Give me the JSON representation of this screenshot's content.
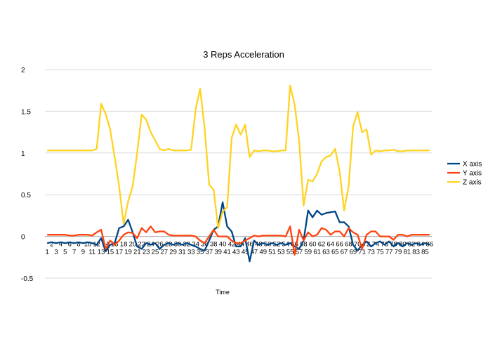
{
  "chart_data": {
    "type": "line",
    "title": "3 Reps Acceleration",
    "xlabel": "Time",
    "ylabel": "",
    "ylim": [
      -0.5,
      2
    ],
    "yticks": [
      "2",
      "1.5",
      "1",
      "0.5",
      "0",
      "-0.5"
    ],
    "grid": true,
    "legend_position": "right",
    "x": [
      1,
      2,
      3,
      4,
      5,
      6,
      7,
      8,
      9,
      10,
      11,
      12,
      13,
      14,
      15,
      16,
      17,
      18,
      19,
      20,
      21,
      22,
      23,
      24,
      25,
      26,
      27,
      28,
      29,
      30,
      31,
      32,
      33,
      34,
      35,
      36,
      37,
      38,
      39,
      40,
      41,
      42,
      43,
      44,
      45,
      46,
      47,
      48,
      49,
      50,
      51,
      52,
      53,
      54,
      55,
      56,
      57,
      58,
      59,
      60,
      61,
      62,
      63,
      64,
      65,
      66,
      67,
      68,
      69,
      70,
      71,
      72,
      73,
      74,
      75,
      76,
      77,
      78,
      79,
      80,
      81,
      82,
      83,
      84,
      85,
      86
    ],
    "series": [
      {
        "name": "X axis",
        "color": "#004586",
        "values": [
          -0.08,
          -0.07,
          -0.08,
          -0.07,
          -0.08,
          -0.07,
          -0.08,
          -0.07,
          -0.08,
          -0.07,
          -0.08,
          -0.1,
          -0.02,
          -0.18,
          -0.1,
          -0.08,
          0.1,
          0.12,
          0.2,
          0.05,
          -0.12,
          -0.15,
          -0.08,
          -0.1,
          -0.08,
          -0.15,
          -0.1,
          -0.08,
          -0.1,
          -0.08,
          -0.1,
          -0.08,
          -0.1,
          -0.12,
          -0.15,
          -0.17,
          -0.05,
          0.08,
          0.12,
          0.41,
          0.12,
          0.06,
          -0.12,
          -0.12,
          -0.02,
          -0.3,
          -0.05,
          -0.1,
          -0.08,
          -0.1,
          -0.08,
          -0.1,
          -0.08,
          -0.1,
          -0.08,
          -0.12,
          -0.15,
          -0.05,
          0.31,
          0.23,
          0.31,
          0.26,
          0.28,
          0.29,
          0.3,
          0.17,
          0.17,
          0.12,
          -0.1,
          -0.17,
          -0.1,
          -0.06,
          -0.12,
          -0.08,
          -0.06,
          -0.1,
          -0.06,
          -0.12,
          -0.08,
          -0.12,
          -0.08,
          -0.1,
          -0.08,
          -0.1,
          -0.08,
          -0.1
        ]
      },
      {
        "name": "Y axis",
        "color": "#ff420e",
        "values": [
          0.02,
          0.02,
          0.02,
          0.02,
          0.02,
          0.01,
          0.01,
          0.02,
          0.02,
          0.02,
          0.01,
          0.05,
          0.08,
          -0.15,
          -0.05,
          -0.1,
          -0.05,
          0.02,
          0.05,
          0.04,
          -0.02,
          0.1,
          0.05,
          0.12,
          0.05,
          0.06,
          0.06,
          0.02,
          0.01,
          0.01,
          0.01,
          0.01,
          0.01,
          0.0,
          -0.05,
          -0.08,
          0.0,
          0.08,
          0.0,
          0.0,
          0.0,
          -0.05,
          -0.08,
          -0.08,
          -0.05,
          -0.02,
          0.01,
          0.0,
          0.01,
          0.01,
          0.01,
          0.01,
          0.01,
          0.0,
          0.12,
          -0.22,
          0.08,
          -0.05,
          0.05,
          0.0,
          0.02,
          0.1,
          0.08,
          0.02,
          0.06,
          0.06,
          0.0,
          0.1,
          0.05,
          0.02,
          -0.15,
          0.02,
          0.06,
          0.06,
          0.0,
          0.0,
          0.0,
          -0.04,
          0.02,
          0.02,
          0.0,
          0.02,
          0.02,
          0.02,
          0.02,
          0.02
        ]
      },
      {
        "name": "Z axis",
        "color": "#ffd320",
        "values": [
          1.03,
          1.03,
          1.03,
          1.03,
          1.03,
          1.03,
          1.03,
          1.03,
          1.03,
          1.03,
          1.03,
          1.05,
          1.59,
          1.47,
          1.28,
          0.95,
          0.6,
          0.15,
          0.42,
          0.6,
          1.0,
          1.46,
          1.4,
          1.25,
          1.15,
          1.05,
          1.03,
          1.05,
          1.03,
          1.03,
          1.03,
          1.03,
          1.04,
          1.52,
          1.77,
          1.3,
          0.62,
          0.56,
          0.1,
          0.3,
          0.35,
          1.18,
          1.34,
          1.22,
          1.34,
          0.95,
          1.03,
          1.02,
          1.03,
          1.03,
          1.02,
          1.02,
          1.03,
          1.03,
          1.81,
          1.58,
          1.15,
          0.37,
          0.68,
          0.66,
          0.75,
          0.9,
          0.95,
          0.97,
          1.05,
          0.78,
          0.31,
          0.6,
          1.32,
          1.49,
          1.25,
          1.28,
          0.98,
          1.03,
          1.02,
          1.03,
          1.03,
          1.04,
          1.02,
          1.02,
          1.03,
          1.03,
          1.03,
          1.03,
          1.03,
          1.03
        ]
      }
    ]
  }
}
